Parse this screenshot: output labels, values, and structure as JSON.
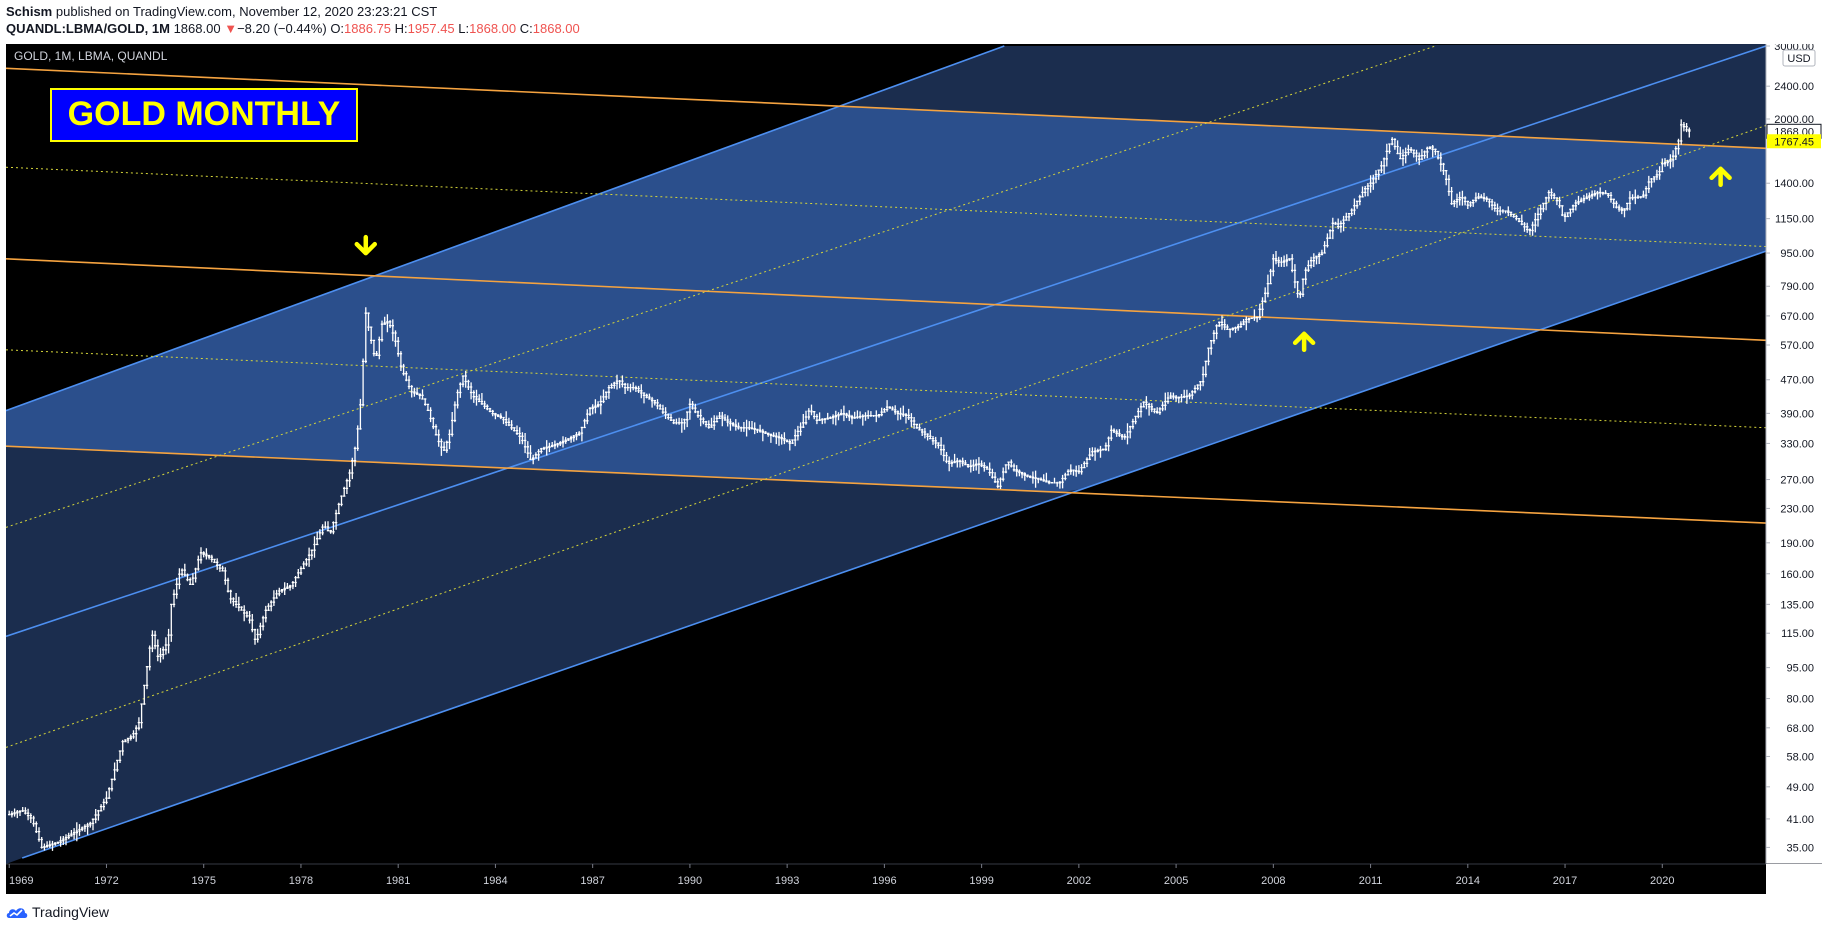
{
  "header": {
    "author": "Schism",
    "published_text": "published on TradingView.com, November 12, 2020 23:23:21 CST",
    "symbol": "QUANDL:LBMA/GOLD, 1M",
    "last": "1868.00",
    "change_text": "−8.20 (−0.44%)",
    "o_label": "O:",
    "o_value": "1886.75",
    "h_label": "H:",
    "h_value": "1957.45",
    "l_label": "L:",
    "l_value": "1868.00",
    "c_label": "C:",
    "c_value": "1868.00"
  },
  "footer": {
    "brand": "TradingView"
  },
  "colors": {
    "background": "#000000",
    "pane_dark": "#1b2d4e",
    "pane_mid": "#2b4f8c",
    "channel_line": "#4d8ff0",
    "resistance_line": "#f5a340",
    "dotted_line": "#d6d63a",
    "candles": "#ffffff",
    "arrows": "#ffff00",
    "label_box": "#0000ff",
    "label_text": "#ffff00"
  },
  "chart_data": {
    "type": "candlestick",
    "legend_text": "GOLD, 1M, LBMA, QUANDL",
    "annotation_label": "GOLD MONTHLY",
    "axis_unit": "USD",
    "scale": "log",
    "ylim": [
      33,
      3000
    ],
    "y_ticks": [
      3000,
      2400,
      2000,
      1400,
      1150,
      950,
      790,
      670,
      570,
      470,
      390,
      330,
      270,
      230,
      190,
      160,
      135,
      115,
      95,
      80,
      68,
      58,
      49,
      41,
      35
    ],
    "y_tick_labels": [
      "3000.00",
      "2400.00",
      "2000.00",
      "1400.00",
      "1150.00",
      "950.00",
      "790.00",
      "670.00",
      "570.00",
      "470.00",
      "390.00",
      "330.00",
      "270.00",
      "230.00",
      "190.00",
      "160.00",
      "135.00",
      "115.00",
      "95.00",
      "80.00",
      "68.00",
      "58.00",
      "49.00",
      "41.00",
      "35.00"
    ],
    "x_ticks": [
      1969,
      1972,
      1975,
      1978,
      1981,
      1984,
      1987,
      1990,
      1993,
      1996,
      1999,
      2002,
      2005,
      2008,
      2011,
      2014,
      2017,
      2020
    ],
    "xlim": [
      1968.9,
      2023.2
    ],
    "price_labels": [
      {
        "value": 1868,
        "text": "1868.00",
        "style": "last"
      },
      {
        "value": 1767.45,
        "text": "1767.45",
        "style": "line"
      }
    ],
    "series": [
      {
        "points": [
          [
            1969.0,
            42
          ],
          [
            1969.4,
            43
          ],
          [
            1969.7,
            41
          ],
          [
            1970.0,
            35
          ],
          [
            1970.5,
            36
          ],
          [
            1971.0,
            38
          ],
          [
            1971.5,
            40
          ],
          [
            1972.0,
            46
          ],
          [
            1972.5,
            63
          ],
          [
            1972.8,
            65
          ],
          [
            1973.0,
            70
          ],
          [
            1973.4,
            115
          ],
          [
            1973.6,
            100
          ],
          [
            1973.9,
            110
          ],
          [
            1974.0,
            135
          ],
          [
            1974.3,
            165
          ],
          [
            1974.6,
            150
          ],
          [
            1974.9,
            180
          ],
          [
            1975.2,
            175
          ],
          [
            1975.6,
            162
          ],
          [
            1975.8,
            140
          ],
          [
            1976.0,
            135
          ],
          [
            1976.4,
            125
          ],
          [
            1976.6,
            110
          ],
          [
            1976.9,
            130
          ],
          [
            1977.3,
            145
          ],
          [
            1977.7,
            150
          ],
          [
            1977.9,
            160
          ],
          [
            1978.3,
            180
          ],
          [
            1978.7,
            210
          ],
          [
            1978.9,
            200
          ],
          [
            1979.2,
            240
          ],
          [
            1979.5,
            280
          ],
          [
            1979.7,
            330
          ],
          [
            1979.85,
            420
          ],
          [
            1980.0,
            680
          ],
          [
            1980.1,
            620
          ],
          [
            1980.3,
            520
          ],
          [
            1980.5,
            640
          ],
          [
            1980.7,
            650
          ],
          [
            1980.9,
            590
          ],
          [
            1981.1,
            500
          ],
          [
            1981.4,
            440
          ],
          [
            1981.7,
            430
          ],
          [
            1981.9,
            400
          ],
          [
            1982.2,
            340
          ],
          [
            1982.4,
            315
          ],
          [
            1982.6,
            350
          ],
          [
            1982.8,
            430
          ],
          [
            1983.0,
            480
          ],
          [
            1983.3,
            430
          ],
          [
            1983.6,
            410
          ],
          [
            1983.9,
            390
          ],
          [
            1984.2,
            380
          ],
          [
            1984.5,
            360
          ],
          [
            1984.8,
            340
          ],
          [
            1985.1,
            300
          ],
          [
            1985.4,
            320
          ],
          [
            1985.7,
            325
          ],
          [
            1985.95,
            330
          ],
          [
            1986.3,
            340
          ],
          [
            1986.6,
            350
          ],
          [
            1986.9,
            400
          ],
          [
            1987.2,
            410
          ],
          [
            1987.5,
            450
          ],
          [
            1987.8,
            470
          ],
          [
            1988.0,
            450
          ],
          [
            1988.3,
            450
          ],
          [
            1988.6,
            430
          ],
          [
            1988.9,
            415
          ],
          [
            1989.2,
            390
          ],
          [
            1989.5,
            370
          ],
          [
            1989.8,
            370
          ],
          [
            1990.0,
            410
          ],
          [
            1990.3,
            380
          ],
          [
            1990.6,
            360
          ],
          [
            1990.9,
            385
          ],
          [
            1991.2,
            370
          ],
          [
            1991.5,
            360
          ],
          [
            1991.8,
            360
          ],
          [
            1992.1,
            355
          ],
          [
            1992.5,
            345
          ],
          [
            1992.8,
            340
          ],
          [
            1993.1,
            330
          ],
          [
            1993.5,
            370
          ],
          [
            1993.7,
            400
          ],
          [
            1993.9,
            375
          ],
          [
            1994.3,
            380
          ],
          [
            1994.7,
            390
          ],
          [
            1995.0,
            380
          ],
          [
            1995.4,
            385
          ],
          [
            1995.8,
            385
          ],
          [
            1996.1,
            405
          ],
          [
            1996.4,
            390
          ],
          [
            1996.7,
            385
          ],
          [
            1997.0,
            360
          ],
          [
            1997.3,
            345
          ],
          [
            1997.7,
            325
          ],
          [
            1997.95,
            295
          ],
          [
            1998.3,
            300
          ],
          [
            1998.6,
            290
          ],
          [
            1998.9,
            295
          ],
          [
            1999.2,
            285
          ],
          [
            1999.5,
            260
          ],
          [
            1999.8,
            300
          ],
          [
            2000.0,
            285
          ],
          [
            2000.4,
            275
          ],
          [
            2000.8,
            270
          ],
          [
            2001.1,
            265
          ],
          [
            2001.4,
            265
          ],
          [
            2001.7,
            285
          ],
          [
            2002.0,
            282
          ],
          [
            2002.4,
            315
          ],
          [
            2002.8,
            320
          ],
          [
            2003.0,
            355
          ],
          [
            2003.4,
            340
          ],
          [
            2003.8,
            390
          ],
          [
            2004.0,
            415
          ],
          [
            2004.4,
            390
          ],
          [
            2004.8,
            430
          ],
          [
            2005.0,
            425
          ],
          [
            2005.4,
            430
          ],
          [
            2005.8,
            470
          ],
          [
            2006.0,
            560
          ],
          [
            2006.3,
            650
          ],
          [
            2006.6,
            620
          ],
          [
            2006.9,
            630
          ],
          [
            2007.2,
            660
          ],
          [
            2007.5,
            665
          ],
          [
            2007.8,
            780
          ],
          [
            2008.0,
            920
          ],
          [
            2008.2,
            900
          ],
          [
            2008.5,
            920
          ],
          [
            2008.8,
            730
          ],
          [
            2008.95,
            850
          ],
          [
            2009.2,
            920
          ],
          [
            2009.5,
            950
          ],
          [
            2009.85,
            1130
          ],
          [
            2010.0,
            1100
          ],
          [
            2010.4,
            1200
          ],
          [
            2010.8,
            1350
          ],
          [
            2011.0,
            1400
          ],
          [
            2011.35,
            1550
          ],
          [
            2011.65,
            1800
          ],
          [
            2011.9,
            1600
          ],
          [
            2012.2,
            1700
          ],
          [
            2012.5,
            1600
          ],
          [
            2012.8,
            1720
          ],
          [
            2013.0,
            1670
          ],
          [
            2013.3,
            1470
          ],
          [
            2013.5,
            1250
          ],
          [
            2013.8,
            1300
          ],
          [
            2014.0,
            1240
          ],
          [
            2014.3,
            1300
          ],
          [
            2014.6,
            1280
          ],
          [
            2014.9,
            1200
          ],
          [
            2015.2,
            1200
          ],
          [
            2015.5,
            1150
          ],
          [
            2015.9,
            1070
          ],
          [
            2016.1,
            1150
          ],
          [
            2016.5,
            1330
          ],
          [
            2016.8,
            1260
          ],
          [
            2016.95,
            1150
          ],
          [
            2017.3,
            1250
          ],
          [
            2017.7,
            1300
          ],
          [
            2018.0,
            1330
          ],
          [
            2018.3,
            1320
          ],
          [
            2018.6,
            1220
          ],
          [
            2018.8,
            1200
          ],
          [
            2019.0,
            1290
          ],
          [
            2019.4,
            1300
          ],
          [
            2019.6,
            1420
          ],
          [
            2019.9,
            1480
          ],
          [
            2020.0,
            1560
          ],
          [
            2020.3,
            1600
          ],
          [
            2020.5,
            1770
          ],
          [
            2020.6,
            1970
          ],
          [
            2020.7,
            1890
          ],
          [
            2020.85,
            1868
          ]
        ]
      }
    ],
    "channel_lines": [
      {
        "kind": "channel-upper",
        "from": [
          1968.9,
          396
        ],
        "to": [
          1999.7,
          3000
        ]
      },
      {
        "kind": "channel-middle",
        "from": [
          1968.9,
          113
        ],
        "to": [
          2023.2,
          3000
        ]
      },
      {
        "kind": "channel-lower",
        "from": [
          1969.4,
          33
        ],
        "to": [
          2023.2,
          960
        ]
      },
      {
        "kind": "resistance",
        "from": [
          1968.9,
          2650
        ],
        "to": [
          2023.2,
          1700
        ]
      },
      {
        "kind": "resistance",
        "from": [
          1968.9,
          920
        ],
        "to": [
          2023.2,
          585
        ]
      },
      {
        "kind": "resistance",
        "from": [
          1968.9,
          325
        ],
        "to": [
          2023.2,
          212
        ]
      },
      {
        "kind": "dotted",
        "from": [
          1968.9,
          1530
        ],
        "to": [
          2023.2,
          985
        ]
      },
      {
        "kind": "dotted",
        "from": [
          1968.9,
          555
        ],
        "to": [
          2023.2,
          360
        ]
      },
      {
        "kind": "dotted-rising",
        "from": [
          1968.9,
          207
        ],
        "to": [
          2013.0,
          3000
        ]
      },
      {
        "kind": "dotted-rising",
        "from": [
          1968.9,
          61
        ],
        "to": [
          2023.2,
          1930
        ]
      }
    ],
    "arrows": [
      {
        "x": 1980.0,
        "price": 960,
        "direction": "down"
      },
      {
        "x": 2008.95,
        "price": 600,
        "direction": "up"
      },
      {
        "x": 2021.8,
        "price": 1500,
        "direction": "up"
      }
    ]
  }
}
